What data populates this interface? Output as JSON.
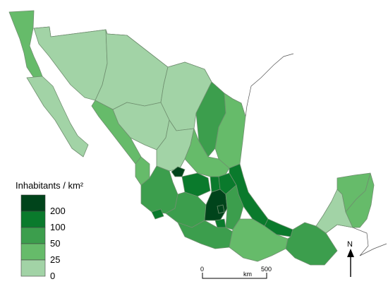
{
  "map": {
    "legend": {
      "title": "Inhabitants / km²",
      "classes": [
        {
          "label": "200",
          "color": "#00441b"
        },
        {
          "label": "100",
          "color": "#0a7a2c"
        },
        {
          "label": "50",
          "color": "#3c9e4d"
        },
        {
          "label": "25",
          "color": "#66bb6a"
        },
        {
          "label": "0",
          "color": "#a2d3a6"
        }
      ]
    },
    "scale_bar": {
      "start": "0",
      "unit": "km",
      "end": "500"
    },
    "north_arrow": "N"
  }
}
